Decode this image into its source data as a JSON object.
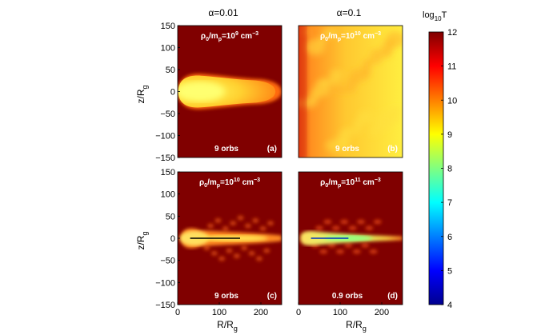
{
  "chart_data": {
    "type": "heatmap",
    "colorbar": {
      "label": "log10T",
      "label_main": "log",
      "label_sub": "10",
      "label_tail": "T",
      "range": [
        4,
        12
      ],
      "ticks": [
        "4",
        "5",
        "6",
        "7",
        "8",
        "9",
        "10",
        "11",
        "12"
      ],
      "colors": [
        "#00008f",
        "#0000ff",
        "#0080ff",
        "#00ffff",
        "#80ff80",
        "#ffff00",
        "#ff8000",
        "#ff0000",
        "#800000"
      ]
    },
    "columns": [
      {
        "title": "α=0.01",
        "greek": "α",
        "value": "=0.01"
      },
      {
        "title": "α=0.1",
        "greek": "α",
        "value": "=0.1"
      }
    ],
    "xlabel": {
      "main": "R/R",
      "sub": "g"
    },
    "ylabel": {
      "main": "z/R",
      "sub": "g"
    },
    "xlim": [
      0,
      250
    ],
    "ylim": [
      -150,
      150
    ],
    "xticks": [
      "0",
      "100",
      "200"
    ],
    "yticks": [
      "150",
      "100",
      "50",
      "0",
      "−50",
      "−100",
      "−150"
    ],
    "background_color": "#800000",
    "panels": [
      {
        "id": "a",
        "letter": "(a)",
        "orbits": "9 orbs",
        "density_exp": "9",
        "alpha": 0.01,
        "log10T_background": 12,
        "log10T_core": 9.5,
        "disk_line": false,
        "hot_halo": false
      },
      {
        "id": "b",
        "letter": "(b)",
        "orbits": "9 orbs",
        "density_exp": "10",
        "alpha": 0.1,
        "log10T_background": 9.2,
        "log10T_core": 10.5,
        "disk_line": false,
        "hot_halo": true
      },
      {
        "id": "c",
        "letter": "(c)",
        "orbits": "9 orbs",
        "density_exp": "10",
        "alpha": 0.01,
        "log10T_background": 12,
        "log10T_core": 9,
        "disk_line": true,
        "disk_line_x": [
          30,
          150
        ],
        "hot_halo": false
      },
      {
        "id": "d",
        "letter": "(d)",
        "orbits": "0.9 orbs",
        "density_exp": "11",
        "alpha": 0.1,
        "log10T_background": 12,
        "log10T_core": 8.5,
        "disk_line": true,
        "disk_line_x": [
          30,
          120
        ],
        "hot_halo": false
      }
    ],
    "density_label": {
      "rho": "ρ",
      "sub0": "0",
      "mid": "/m",
      "subp": "p",
      "eq": "=10",
      "unit": " cm",
      "unit_exp": "−3"
    }
  }
}
